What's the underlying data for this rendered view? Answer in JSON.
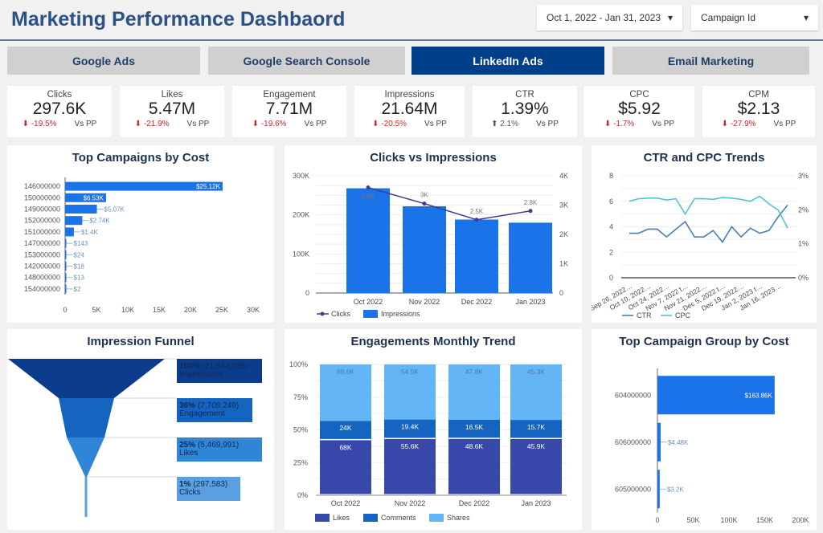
{
  "header": {
    "title": "Marketing Performance Dashbaord",
    "date_range": "Oct 1, 2022 - Jan 31, 2023",
    "campaign_filter": "Campaign Id"
  },
  "tabs": [
    {
      "label": "Google Ads"
    },
    {
      "label": "Google Search Console"
    },
    {
      "label": "LinkedIn Ads",
      "active": true
    },
    {
      "label": "Email Marketing"
    }
  ],
  "kpis": [
    {
      "label": "Clicks",
      "value": "297.6K",
      "delta": "-19.5%",
      "dir": "down",
      "vs": "Vs PP"
    },
    {
      "label": "Likes",
      "value": "5.47M",
      "delta": "-21.9%",
      "dir": "down",
      "vs": "Vs PP"
    },
    {
      "label": "Engagement",
      "value": "7.71M",
      "delta": "-19.6%",
      "dir": "down",
      "vs": "Vs PP"
    },
    {
      "label": "Impressions",
      "value": "21.64M",
      "delta": "-20.5%",
      "dir": "down",
      "vs": "Vs PP"
    },
    {
      "label": "CTR",
      "value": "1.39%",
      "delta": "2.1%",
      "dir": "up",
      "vs": "Vs PP"
    },
    {
      "label": "CPC",
      "value": "$5.92",
      "delta": "-1.7%",
      "dir": "down",
      "vs": "Vs PP"
    },
    {
      "label": "CPM",
      "value": "$2.13",
      "delta": "-27.9%",
      "dir": "down",
      "vs": "Vs PP"
    }
  ],
  "colors": {
    "accent": "#003f8a",
    "bar": "#1a73e8",
    "negative": "#c62828"
  },
  "chart_data": [
    {
      "id": "campaigns",
      "type": "bar",
      "orientation": "horizontal",
      "title": "Top Campaigns by Cost",
      "categories": [
        "146000000",
        "150000000",
        "149000000",
        "152000000",
        "151000000",
        "147000000",
        "153000000",
        "142000000",
        "148000000",
        "154000000"
      ],
      "values": [
        25120,
        6530,
        5070,
        2740,
        1400,
        143,
        24,
        18,
        13,
        2
      ],
      "labels": [
        "$25.12K",
        "$6.53K",
        "$5.07K",
        "$2.74K",
        "$1.4K",
        "$143",
        "$24",
        "$18",
        "$13",
        "$2"
      ],
      "xlim": [
        0,
        30000
      ],
      "xticks": [
        "0",
        "5K",
        "10K",
        "15K",
        "20K",
        "25K",
        "30K"
      ]
    },
    {
      "id": "clicks_imp",
      "type": "bar+line",
      "title": "Clicks vs Impressions",
      "categories": [
        "Oct 2022",
        "Nov 2022",
        "Dec 2022",
        "Jan 2023"
      ],
      "series": [
        {
          "name": "Impressions",
          "type": "bar",
          "axis": "left",
          "values": [
            268000,
            222000,
            188000,
            180000
          ]
        },
        {
          "name": "Clicks",
          "type": "line",
          "axis": "right",
          "values": [
            3600,
            3050,
            2500,
            2800
          ],
          "labels": [
            "3.6K",
            "3K",
            "2.5K",
            "2.8K"
          ]
        }
      ],
      "ylim_left": [
        0,
        300000
      ],
      "yticks_left": [
        "0",
        "100K",
        "200K",
        "300K"
      ],
      "ylim_right": [
        0,
        4000
      ],
      "yticks_right": [
        "0",
        "1K",
        "2K",
        "3K",
        "4K"
      ],
      "legend": "bottom-left"
    },
    {
      "id": "ctr_cpc",
      "type": "line",
      "title": "CTR and CPC Trends",
      "x": [
        "Sep 26, 2022…",
        "",
        "Oct 10, 2022…",
        "",
        "Oct 24, 2022…",
        "",
        "Nov 7, 2022 t…",
        "",
        "Nov 21, 2022…",
        "",
        "Dec 5, 2022 t…",
        "",
        "Dec 19, 2022…",
        "",
        "Jan 2, 2023 t…",
        "",
        "Jan 16, 2023…",
        ""
      ],
      "series": [
        {
          "name": "CTR",
          "axis": "right",
          "values": [
            1.31,
            1.31,
            1.43,
            1.43,
            1.2,
            1.43,
            1.65,
            1.2,
            1.2,
            1.39,
            1.05,
            1.5,
            1.2,
            1.46,
            1.31,
            1.39,
            1.8,
            2.14
          ]
        },
        {
          "name": "CPC",
          "axis": "left",
          "values": [
            6.0,
            6.2,
            6.25,
            6.25,
            6.1,
            6.2,
            5.0,
            6.2,
            6.2,
            6.15,
            6.3,
            6.25,
            6.15,
            6.0,
            6.4,
            5.8,
            5.3,
            3.9
          ]
        }
      ],
      "ylim_left": [
        0,
        8
      ],
      "yticks_left": [
        "0",
        "2",
        "4",
        "6",
        "8"
      ],
      "ylim_right": [
        0,
        3
      ],
      "yticks_right": [
        "0%",
        "1%",
        "2%",
        "3%"
      ],
      "colors": {
        "CTR": "#4a7fae",
        "CPC": "#4fc6cc"
      },
      "legend": "bottom-left"
    },
    {
      "id": "funnel",
      "type": "funnel",
      "title": "Impression Funnel",
      "stages": [
        {
          "pct": "100%",
          "count": "(21,644,038)",
          "name": "Impressions",
          "color": "#0b3d8c"
        },
        {
          "pct": "36%",
          "count": "(7,708,249)",
          "name": "Engagement",
          "color": "#1565c0"
        },
        {
          "pct": "25%",
          "count": "(5,469,991)",
          "name": "Likes",
          "color": "#2f86d6"
        },
        {
          "pct": "1%",
          "count": "(297,583)",
          "name": "Clicks",
          "color": "#5aa0e0"
        }
      ]
    },
    {
      "id": "engagements",
      "type": "bar",
      "stacked": "percent",
      "title": "Engagements Monthly Trend",
      "categories": [
        "Oct 2022",
        "Nov 2022",
        "Dec 2022",
        "Jan 2023"
      ],
      "series": [
        {
          "name": "Likes",
          "values": [
            68000,
            55600,
            48600,
            45900
          ],
          "labels": [
            "68K",
            "55.6K",
            "48.6K",
            "45.9K"
          ],
          "color": "#3949ab"
        },
        {
          "name": "Comments",
          "values": [
            24000,
            19400,
            16500,
            15700
          ],
          "labels": [
            "24K",
            "19.4K",
            "16.5K",
            "15.7K"
          ],
          "color": "#1565c0"
        },
        {
          "name": "Shares",
          "values": [
            69600,
            54500,
            47800,
            45300
          ],
          "labels": [
            "69.6K",
            "54.5K",
            "47.8K",
            "45.3K"
          ],
          "color": "#64b5f6"
        }
      ],
      "yticks": [
        "0%",
        "25%",
        "50%",
        "75%",
        "100%"
      ],
      "legend": "bottom-left"
    },
    {
      "id": "groups",
      "type": "bar",
      "orientation": "horizontal",
      "title": "Top Campaign Group by Cost",
      "categories": [
        "604000000",
        "606000000",
        "605000000"
      ],
      "values": [
        163860,
        4480,
        3200
      ],
      "labels": [
        "$163.86K",
        "$4.48K",
        "$3.2K"
      ],
      "xlim": [
        0,
        200000
      ],
      "xticks": [
        "0",
        "50K",
        "100K",
        "150K",
        "200K"
      ]
    }
  ]
}
